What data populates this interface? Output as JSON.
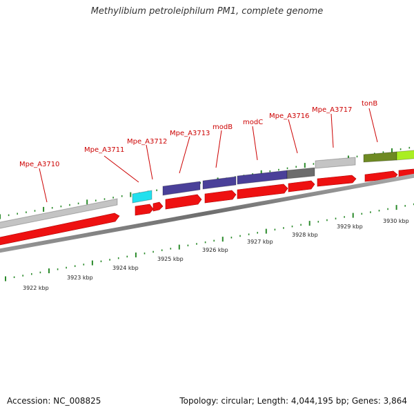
{
  "title": "Methylibium petroleiphilum PM1, complete genome",
  "footer": {
    "accession": "Accession: NC_008825",
    "summary": "Topology: circular; Length: 4,044,195 bp; Genes: 3,864"
  },
  "colors": {
    "gene_cds": "#ee1111",
    "backbone": "#777777",
    "tick": "#2a8a2a",
    "label": "#cc0000"
  },
  "scale": {
    "unit": "kbp",
    "labels": [
      "3922 kbp",
      "3923 kbp",
      "3924 kbp",
      "3925 kbp",
      "3926 kbp",
      "3927 kbp",
      "3928 kbp",
      "3929 kbp",
      "3930 kbp"
    ]
  },
  "gene_labels": [
    "Mpe_A3710",
    "Mpe_A3711",
    "Mpe_A3712",
    "Mpe_A3713",
    "modB",
    "modC",
    "Mpe_A3716",
    "Mpe_A3717",
    "tonB"
  ],
  "cog_blocks": [
    {
      "gene": "Mpe_A3710",
      "color": "#c4c4c4"
    },
    {
      "gene": "Mpe_A3711",
      "color": "#22e0ee"
    },
    {
      "gene": "Mpe_A3713",
      "color": "#4a4099"
    },
    {
      "gene": "modB",
      "color": "#4a4099"
    },
    {
      "gene": "modC",
      "color": "#4a4099"
    },
    {
      "gene": "Mpe_A3716",
      "color": "#6c6c6c"
    },
    {
      "gene": "Mpe_A3717",
      "color": "#c4c4c4"
    },
    {
      "gene": "tonB",
      "color": "#6e8a22"
    },
    {
      "gene": "",
      "color": "#aaee22"
    }
  ]
}
